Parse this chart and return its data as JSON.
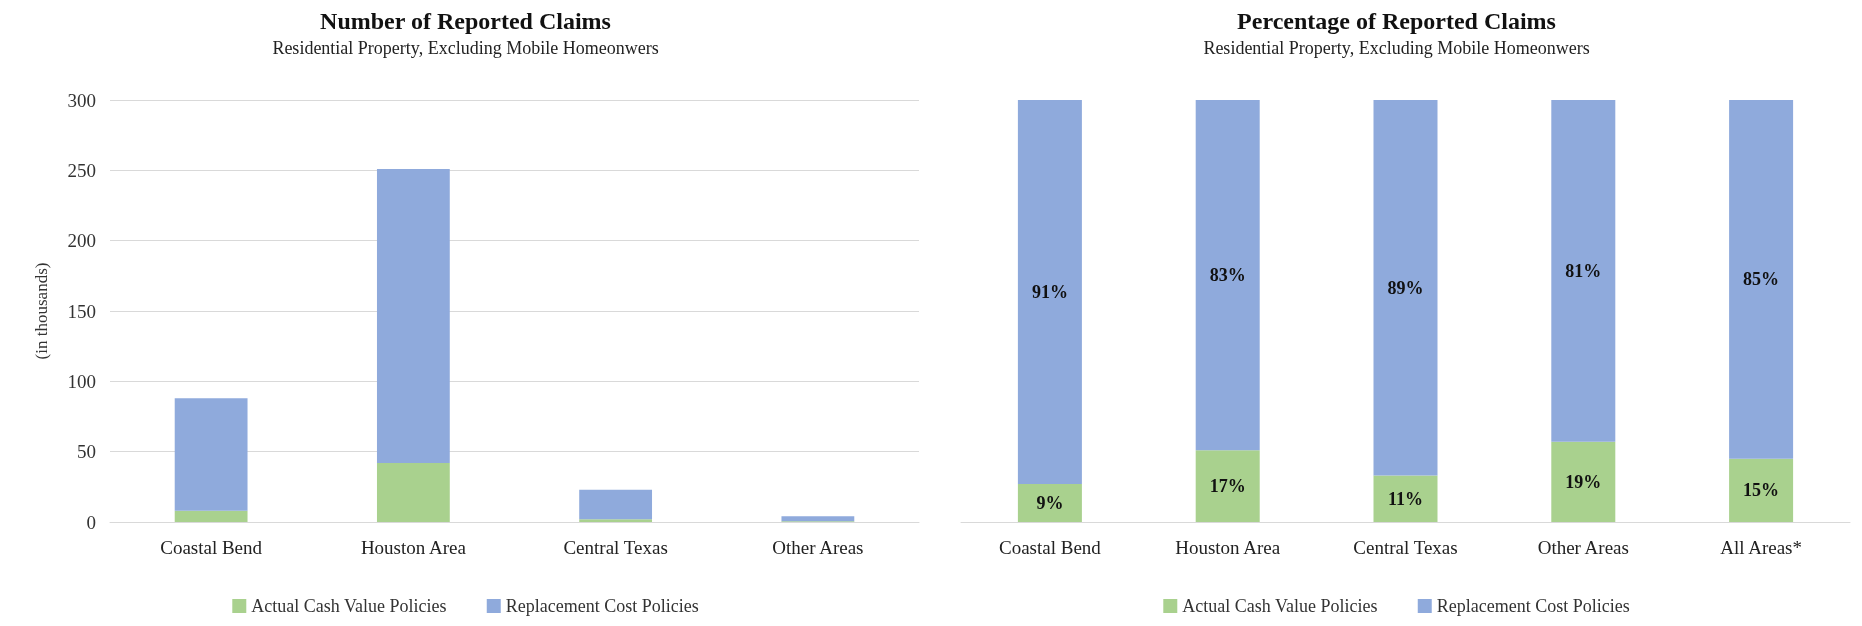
{
  "chart_data": [
    {
      "type": "bar",
      "title": "Number of Reported Claims",
      "subtitle": "Residential Property, Excluding Mobile Homeonwers",
      "ylabel": "(in thousands)",
      "categories": [
        "Coastal Bend",
        "Houston Area",
        "Central Texas",
        "Other Areas"
      ],
      "stacked": true,
      "ylim": [
        0,
        300
      ],
      "yticks": [
        0,
        50,
        100,
        150,
        200,
        250,
        300
      ],
      "grid": "y",
      "legend": "bottom",
      "series": [
        {
          "name": "Actual Cash Value Policies",
          "color": "#a9d18e",
          "values": [
            8,
            42,
            2,
            0.5
          ]
        },
        {
          "name": "Replacement Cost Policies",
          "color": "#8faadc",
          "values": [
            80,
            209,
            21,
            3.5
          ]
        }
      ]
    },
    {
      "type": "bar",
      "title": "Percentage of Reported Claims",
      "subtitle": "Residential Property, Excluding Mobile Homeonwers",
      "categories": [
        "Coastal Bend",
        "Houston Area",
        "Central Texas",
        "Other Areas",
        "All Areas*"
      ],
      "stacked": true,
      "ylim": [
        0,
        100
      ],
      "tick_labels": "x",
      "legend": "bottom",
      "series": [
        {
          "name": "Actual Cash Value Policies",
          "color": "#a9d18e",
          "values": [
            9,
            17,
            11,
            19,
            15
          ],
          "value_labels": [
            "9%",
            "17%",
            "11%",
            "19%",
            "15%"
          ]
        },
        {
          "name": "Replacement Cost Policies",
          "color": "#8faadc",
          "values": [
            91,
            83,
            89,
            81,
            85
          ],
          "value_labels": [
            "91%",
            "83%",
            "89%",
            "81%",
            "85%"
          ]
        }
      ]
    }
  ]
}
